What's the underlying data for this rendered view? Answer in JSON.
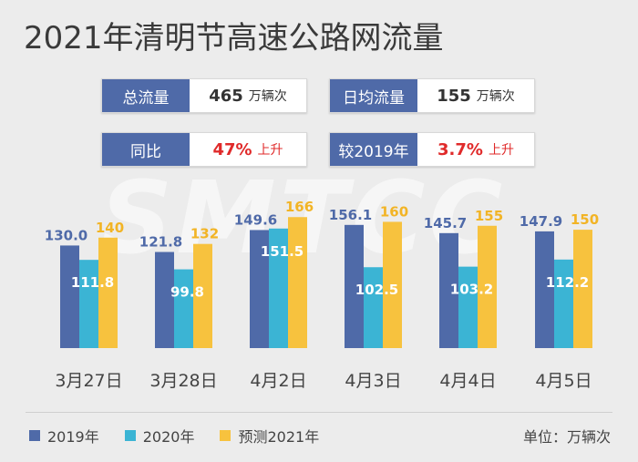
{
  "title": "2021年清明节高速公路网流量",
  "watermark": "SMTCC",
  "stats": [
    {
      "label": "总流量",
      "value": "465",
      "unit": "万辆次",
      "red": false
    },
    {
      "label": "日均流量",
      "value": "155",
      "unit": "万辆次",
      "red": false
    },
    {
      "label": "同比",
      "value": "47%",
      "unit": "上升",
      "red": true
    },
    {
      "label": "较2019年",
      "value": "3.7%",
      "unit": "上升",
      "red": true
    }
  ],
  "legend_labels": [
    "2019年",
    "2020年",
    "预测2021年"
  ],
  "unit_label": "单位：万辆次",
  "colors": {
    "s2019": "#4f6aa8",
    "s2020": "#3bb4d4",
    "s2021": "#f7c23e",
    "label2019": "#4f6aa8",
    "label2021": "#f2b425",
    "label2020": "#ffffff"
  },
  "chart_data": {
    "type": "bar",
    "categories": [
      "3月27日",
      "3月28日",
      "4月2日",
      "4月3日",
      "4月4日",
      "4月5日"
    ],
    "series": [
      {
        "name": "2019年",
        "values": [
          130.0,
          121.8,
          149.6,
          156.1,
          145.7,
          147.9
        ],
        "labels": [
          "130.0",
          "121.8",
          "149.6",
          "156.1",
          "145.7",
          "147.9"
        ]
      },
      {
        "name": "2020年",
        "values": [
          111.8,
          99.8,
          151.5,
          102.5,
          103.2,
          112.2
        ],
        "labels": [
          "111.8",
          "99.8",
          "151.5",
          "102.5",
          "103.2",
          "112.2"
        ]
      },
      {
        "name": "预测2021年",
        "values": [
          140,
          132,
          166,
          160,
          155,
          150
        ],
        "labels": [
          "140",
          "132",
          "166",
          "160",
          "155",
          "150"
        ]
      }
    ],
    "title": "2021年清明节高速公路网流量",
    "xlabel": "",
    "ylabel": "",
    "legend_position": "bottom-left",
    "grid": false
  }
}
